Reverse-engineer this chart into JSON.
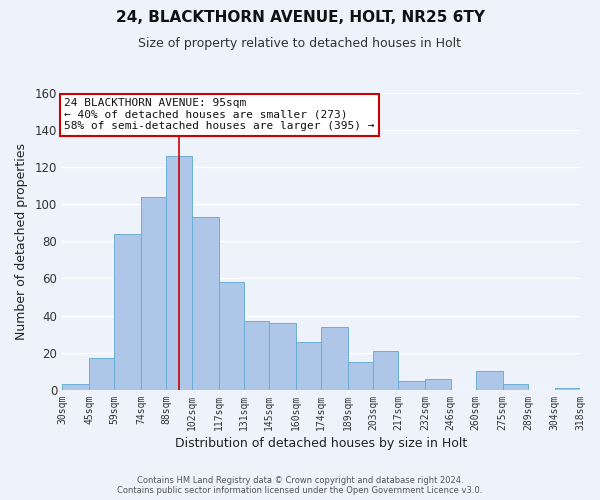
{
  "title": "24, BLACKTHORN AVENUE, HOLT, NR25 6TY",
  "subtitle": "Size of property relative to detached houses in Holt",
  "xlabel": "Distribution of detached houses by size in Holt",
  "ylabel": "Number of detached properties",
  "bar_edges": [
    30,
    45,
    59,
    74,
    88,
    102,
    117,
    131,
    145,
    160,
    174,
    189,
    203,
    217,
    232,
    246,
    260,
    275,
    289,
    304,
    318
  ],
  "bar_heights": [
    3,
    17,
    84,
    104,
    126,
    93,
    58,
    37,
    36,
    26,
    34,
    15,
    21,
    5,
    6,
    0,
    10,
    3,
    0,
    1
  ],
  "bar_color": "#aec6e8",
  "bar_edge_color": "#6baed6",
  "property_line_x": 95,
  "annotation_line0": "24 BLACKTHORN AVENUE: 95sqm",
  "annotation_line1": "← 40% of detached houses are smaller (273)",
  "annotation_line2": "58% of semi-detached houses are larger (395) →",
  "annotation_box_color": "#ffffff",
  "annotation_box_edge_color": "#cc0000",
  "vline_color": "#cc0000",
  "ylim": [
    0,
    160
  ],
  "yticks": [
    0,
    20,
    40,
    60,
    80,
    100,
    120,
    140,
    160
  ],
  "footer1": "Contains HM Land Registry data © Crown copyright and database right 2024.",
  "footer2": "Contains public sector information licensed under the Open Government Licence v3.0.",
  "background_color": "#eef2fb",
  "grid_color": "#ffffff",
  "tick_labels": [
    "30sqm",
    "45sqm",
    "59sqm",
    "74sqm",
    "88sqm",
    "102sqm",
    "117sqm",
    "131sqm",
    "145sqm",
    "160sqm",
    "174sqm",
    "189sqm",
    "203sqm",
    "217sqm",
    "232sqm",
    "246sqm",
    "260sqm",
    "275sqm",
    "289sqm",
    "304sqm",
    "318sqm"
  ]
}
